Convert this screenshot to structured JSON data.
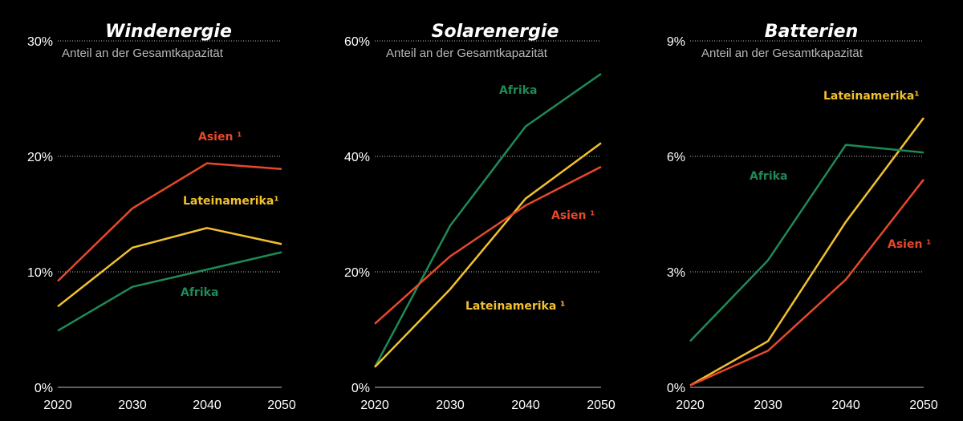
{
  "colors": {
    "afrika": "#1e8a57",
    "asien": "#e8482a",
    "lateinamerika": "#f2c12e"
  },
  "chart_data": [
    {
      "type": "line",
      "title": "Windenergie",
      "subtitle": "Anteil an der Gesamtkapazität",
      "x": [
        "2020",
        "2030",
        "2040",
        "2050"
      ],
      "ylim": [
        0,
        30
      ],
      "yticks": [
        "0%",
        "10%",
        "20%",
        "30%"
      ],
      "grid": true,
      "series": [
        {
          "key": "asien",
          "name": "Asien ¹",
          "values": [
            9.2,
            15.5,
            19.4,
            18.9
          ]
        },
        {
          "key": "lateinamerika",
          "name": "Lateinamerika¹",
          "values": [
            7.0,
            12.1,
            13.8,
            12.4
          ]
        },
        {
          "key": "afrika",
          "name": "Afrika",
          "values": [
            4.9,
            8.7,
            10.2,
            11.7
          ]
        }
      ]
    },
    {
      "type": "line",
      "title": "Solarenergie",
      "subtitle": "Anteil an der Gesamtkapazität",
      "x": [
        "2020",
        "2030",
        "2040",
        "2050"
      ],
      "ylim": [
        0,
        60
      ],
      "yticks": [
        "0%",
        "20%",
        "40%",
        "60%"
      ],
      "grid": true,
      "series": [
        {
          "key": "afrika",
          "name": "Afrika",
          "values": [
            3.5,
            28.0,
            45.2,
            54.3
          ]
        },
        {
          "key": "lateinamerika",
          "name": "Lateinamerika ¹",
          "values": [
            3.5,
            17.0,
            32.7,
            42.3
          ]
        },
        {
          "key": "asien",
          "name": "Asien ¹",
          "values": [
            11.0,
            22.7,
            31.5,
            38.2
          ]
        }
      ]
    },
    {
      "type": "line",
      "title": "Batterien",
      "subtitle": "Anteil an der Gesamtkapazität",
      "x": [
        "2020",
        "2030",
        "2040",
        "2050"
      ],
      "ylim": [
        0,
        9
      ],
      "yticks": [
        "0%",
        "3%",
        "6%",
        "9%"
      ],
      "grid": true,
      "series": [
        {
          "key": "lateinamerika",
          "name": "Lateinamerika¹",
          "values": [
            0.05,
            1.2,
            4.3,
            7.0
          ]
        },
        {
          "key": "afrika",
          "name": "Afrika",
          "values": [
            1.2,
            3.3,
            6.3,
            6.1
          ]
        },
        {
          "key": "asien",
          "name": "Asien ¹",
          "values": [
            0.05,
            0.95,
            2.8,
            5.4
          ]
        }
      ]
    }
  ]
}
